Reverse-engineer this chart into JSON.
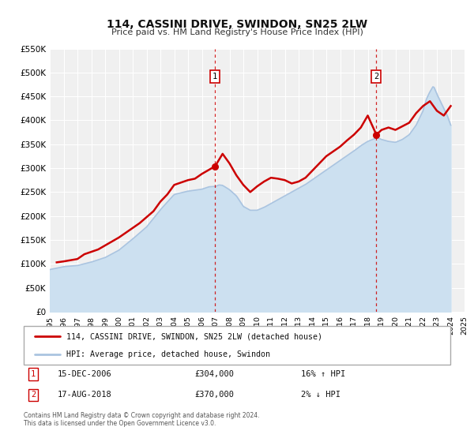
{
  "title": "114, CASSINI DRIVE, SWINDON, SN25 2LW",
  "subtitle": "Price paid vs. HM Land Registry's House Price Index (HPI)",
  "hpi_label": "HPI: Average price, detached house, Swindon",
  "property_label": "114, CASSINI DRIVE, SWINDON, SN25 2LW (detached house)",
  "footer1": "Contains HM Land Registry data © Crown copyright and database right 2024.",
  "footer2": "This data is licensed under the Open Government Licence v3.0.",
  "ylim": [
    0,
    550000
  ],
  "yticks": [
    0,
    50000,
    100000,
    150000,
    200000,
    250000,
    300000,
    350000,
    400000,
    450000,
    500000,
    550000
  ],
  "ytick_labels": [
    "£0",
    "£50K",
    "£100K",
    "£150K",
    "£200K",
    "£250K",
    "£300K",
    "£350K",
    "£400K",
    "£450K",
    "£500K",
    "£550K"
  ],
  "xlim_start": 1995.0,
  "xlim_end": 2025.0,
  "sale1_x": 2006.958,
  "sale1_y": 304000,
  "sale1_date": "15-DEC-2006",
  "sale1_price": "£304,000",
  "sale1_hpi": "16% ↑ HPI",
  "sale2_x": 2018.625,
  "sale2_y": 370000,
  "sale2_date": "17-AUG-2018",
  "sale2_price": "£370,000",
  "sale2_hpi": "2% ↓ HPI",
  "property_color": "#cc0000",
  "hpi_color": "#aac4e0",
  "hpi_fill_color": "#cce0f0",
  "background_color": "#f0f0f0",
  "grid_color": "#ffffff",
  "property_x": [
    1995.5,
    1996.0,
    1997.0,
    1997.5,
    1998.5,
    2000.0,
    2001.5,
    2002.5,
    2003.0,
    2003.5,
    2004.0,
    2005.0,
    2005.5,
    2006.0,
    2006.958,
    2007.5,
    2008.0,
    2008.5,
    2009.0,
    2009.5,
    2010.0,
    2010.5,
    2011.0,
    2011.5,
    2012.0,
    2012.5,
    2013.0,
    2013.5,
    2014.0,
    2014.5,
    2015.0,
    2015.5,
    2016.0,
    2016.5,
    2017.0,
    2017.5,
    2018.0,
    2018.625,
    2019.0,
    2019.5,
    2020.0,
    2021.0,
    2021.5,
    2022.0,
    2022.5,
    2023.0,
    2023.5,
    2024.0
  ],
  "property_y": [
    103000,
    105000,
    110000,
    120000,
    130000,
    155000,
    185000,
    210000,
    230000,
    245000,
    265000,
    275000,
    278000,
    288000,
    304000,
    330000,
    310000,
    285000,
    265000,
    250000,
    262000,
    272000,
    280000,
    278000,
    275000,
    268000,
    272000,
    280000,
    295000,
    310000,
    325000,
    335000,
    345000,
    358000,
    370000,
    385000,
    410000,
    370000,
    380000,
    385000,
    380000,
    395000,
    415000,
    430000,
    440000,
    420000,
    410000,
    430000
  ]
}
